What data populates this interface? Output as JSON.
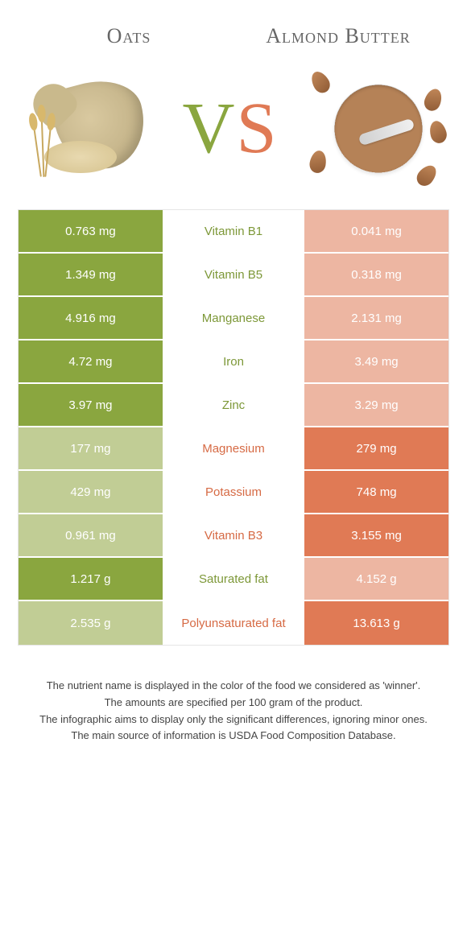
{
  "header": {
    "left_title": "Oats",
    "right_title": "Almond Butter"
  },
  "vs": {
    "v": "V",
    "s": "S"
  },
  "colors": {
    "green": "#8aa63f",
    "green_faded": "#c1cd95",
    "orange": "#e07a55",
    "orange_faded": "#edb6a2",
    "mid_green": "#7d9838",
    "mid_orange": "#d66a44"
  },
  "rows": [
    {
      "left": "0.763 mg",
      "mid": "Vitamin B1",
      "right": "0.041 mg",
      "winner": "left"
    },
    {
      "left": "1.349 mg",
      "mid": "Vitamin B5",
      "right": "0.318 mg",
      "winner": "left"
    },
    {
      "left": "4.916 mg",
      "mid": "Manganese",
      "right": "2.131 mg",
      "winner": "left"
    },
    {
      "left": "4.72 mg",
      "mid": "Iron",
      "right": "3.49 mg",
      "winner": "left"
    },
    {
      "left": "3.97 mg",
      "mid": "Zinc",
      "right": "3.29 mg",
      "winner": "left"
    },
    {
      "left": "177 mg",
      "mid": "Magnesium",
      "right": "279 mg",
      "winner": "right"
    },
    {
      "left": "429 mg",
      "mid": "Potassium",
      "right": "748 mg",
      "winner": "right"
    },
    {
      "left": "0.961 mg",
      "mid": "Vitamin B3",
      "right": "3.155 mg",
      "winner": "right"
    },
    {
      "left": "1.217 g",
      "mid": "Saturated fat",
      "right": "4.152 g",
      "winner": "left"
    },
    {
      "left": "2.535 g",
      "mid": "Polyunsaturated fat",
      "right": "13.613 g",
      "winner": "right"
    }
  ],
  "footer": {
    "line1": "The nutrient name is displayed in the color of the food we considered as 'winner'.",
    "line2": "The amounts are specified per 100 gram of the product.",
    "line3": "The infographic aims to display only the significant differences, ignoring minor ones.",
    "line4": "The main source of information is USDA Food Composition Database."
  }
}
